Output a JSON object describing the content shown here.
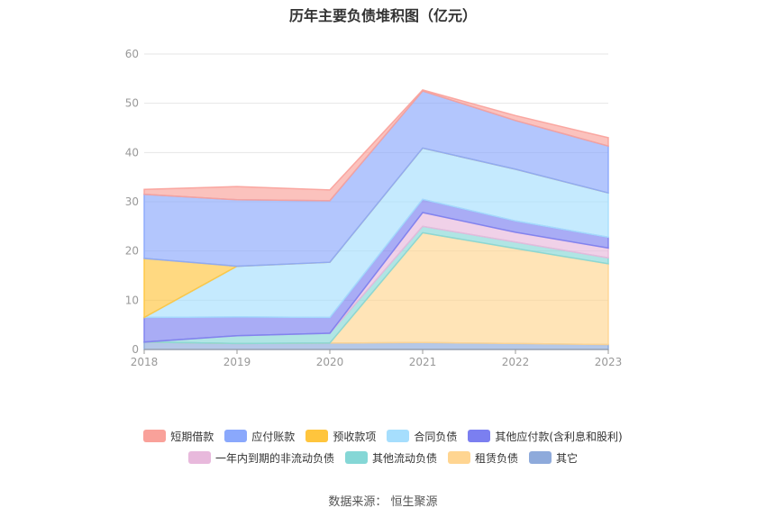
{
  "chart_data": {
    "type": "area",
    "stacked": true,
    "title": "历年主要负债堆积图（亿元）",
    "categories": [
      "2018",
      "2019",
      "2020",
      "2021",
      "2022",
      "2023"
    ],
    "ylim": [
      0,
      60
    ],
    "yticks": [
      0,
      10,
      20,
      30,
      40,
      50,
      60
    ],
    "grid": true,
    "legend_position": "bottom",
    "series": [
      {
        "name": "其它",
        "color": "#8eaadb",
        "values": [
          1.5,
          1.2,
          1.3,
          1.4,
          1.2,
          1.0
        ]
      },
      {
        "name": "租赁负债",
        "color": "#ffd591",
        "values": [
          0,
          0,
          0,
          22.3,
          19.3,
          16.4
        ]
      },
      {
        "name": "其他流动负债",
        "color": "#85d7d6",
        "values": [
          0,
          1.6,
          2.0,
          1.3,
          1.3,
          1.2
        ]
      },
      {
        "name": "一年内到期的非流动负债",
        "color": "#e8b9dc",
        "values": [
          0,
          0,
          0,
          2.8,
          2.0,
          2.0
        ]
      },
      {
        "name": "其他应付款(含利息和股利)",
        "color": "#7b7ff0",
        "values": [
          5.0,
          3.8,
          3.2,
          2.7,
          2.3,
          2.2
        ]
      },
      {
        "name": "合同负债",
        "color": "#a6defd",
        "values": [
          0,
          10.3,
          11.2,
          10.4,
          10.5,
          9.0
        ]
      },
      {
        "name": "预收款项",
        "color": "#ffc53d",
        "values": [
          12.0,
          0,
          0,
          0,
          0,
          0
        ]
      },
      {
        "name": "应付账款",
        "color": "#8aa8fc",
        "values": [
          13.0,
          13.5,
          12.5,
          11.6,
          9.9,
          9.5
        ]
      },
      {
        "name": "短期借款",
        "color": "#f9a19a",
        "values": [
          1.0,
          2.7,
          2.2,
          0.2,
          1.0,
          1.7
        ]
      }
    ],
    "legend_order": [
      "短期借款",
      "应付账款",
      "预收款项",
      "合同负债",
      "其他应付款(含利息和股利)",
      "一年内到期的非流动负债",
      "其他流动负债",
      "租赁负债",
      "其它"
    ]
  },
  "source": "数据来源：  恒生聚源"
}
